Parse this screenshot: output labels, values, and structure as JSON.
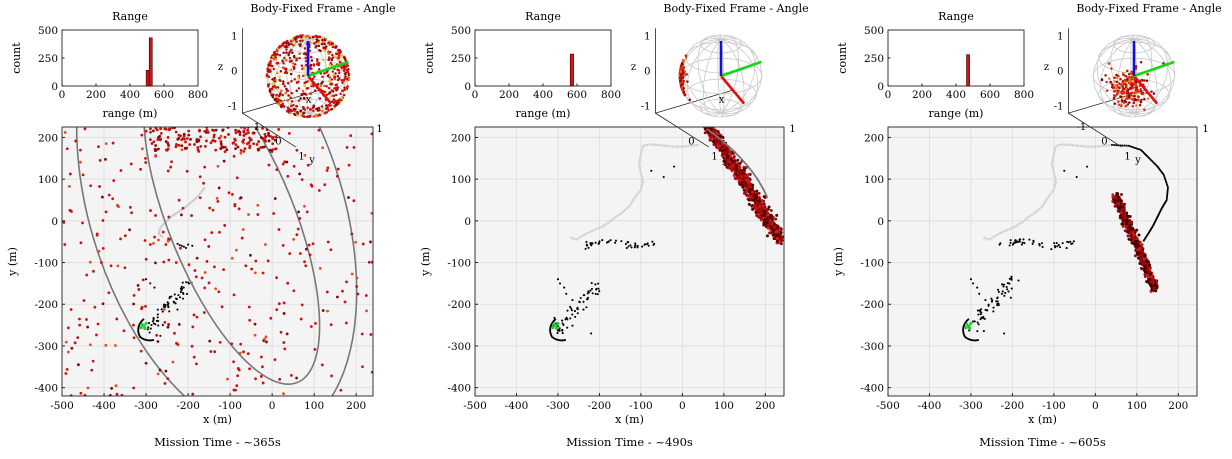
{
  "panels": [
    {
      "caption": "Mission Time - ~365s",
      "sphere_title": "Body-Fixed Frame - Angle",
      "hist": {
        "title": "Range",
        "xlabel": "range (m)",
        "ylabel": "count",
        "xticks": [
          "0",
          "200",
          "400",
          "600",
          "800"
        ],
        "yticks": [
          "0",
          "250",
          "500"
        ],
        "xlim": [
          0,
          800
        ],
        "ylim": [
          0,
          500
        ],
        "bars": [
          {
            "x0": 495,
            "x1": 513,
            "count": 140
          },
          {
            "x0": 513,
            "x1": 531,
            "count": 430
          }
        ]
      },
      "sphere": {
        "x_tick": "1",
        "y_label": "y",
        "y_ticks": [
          "1",
          "0",
          "-1"
        ],
        "z_ticks": [
          "1",
          "0",
          "-1"
        ],
        "z_label": "z",
        "x_label": "x",
        "cluster": "wide",
        "cluster_center": [
          -0.2,
          0.2,
          0.6
        ]
      },
      "map": {
        "xlabel": "x (m)",
        "ylabel": "y (m)",
        "xticks": [
          "-500",
          "-400",
          "-300",
          "-200",
          "-100",
          "0",
          "100",
          "200"
        ],
        "yticks": [
          "200",
          "100",
          "0",
          "-100",
          "-200",
          "-300",
          "-400"
        ],
        "xlim": [
          -500,
          240
        ],
        "ylim": [
          -420,
          225
        ],
        "ring_center": [
          -120,
          -70
        ],
        "ring_rx": [
          355,
          510
        ],
        "ring_ry": [
          340,
          520
        ],
        "mode": "scatter"
      }
    },
    {
      "caption": "Mission Time - ~490s",
      "sphere_title": "Body-Fixed Frame - Angle",
      "hist": {
        "title": "Range",
        "xlabel": "range (m)",
        "ylabel": "count",
        "xticks": [
          "0",
          "200",
          "400",
          "600",
          "800"
        ],
        "yticks": [
          "0",
          "250",
          "500"
        ],
        "xlim": [
          0,
          800
        ],
        "ylim": [
          0,
          500
        ],
        "bars": [
          {
            "x0": 560,
            "x1": 580,
            "count": 285
          }
        ]
      },
      "sphere": {
        "x_tick": "1",
        "y_label": "y",
        "y_ticks": [
          "1",
          "0"
        ],
        "z_ticks": [
          "1",
          "0",
          "-1"
        ],
        "z_label": "z",
        "x_label": "x",
        "cluster": "left",
        "cluster_center": [
          -0.75,
          -0.45,
          0
        ]
      },
      "map": {
        "xlabel": "x (m)",
        "ylabel": "y (m)",
        "xticks": [
          "-500",
          "-400",
          "-300",
          "-200",
          "-100",
          "0",
          "100",
          "200"
        ],
        "yticks": [
          "200",
          "100",
          "0",
          "-100",
          "-200",
          "-300",
          "-400"
        ],
        "xlim": [
          -500,
          245
        ],
        "ylim": [
          -420,
          225
        ],
        "mode": "arc_upper"
      }
    },
    {
      "caption": "Mission Time - ~605s",
      "sphere_title": "Body-Fixed Frame - Angle",
      "hist": {
        "title": "Range",
        "xlabel": "range (m)",
        "ylabel": "count",
        "xticks": [
          "0",
          "200",
          "400",
          "600",
          "800"
        ],
        "yticks": [
          "0",
          "250",
          "500"
        ],
        "xlim": [
          0,
          800
        ],
        "ylim": [
          0,
          500
        ],
        "bars": [
          {
            "x0": 462,
            "x1": 480,
            "count": 280
          }
        ]
      },
      "sphere": {
        "x_tick": "1",
        "y_label": "y",
        "y_ticks": [
          "1",
          "0",
          "-1"
        ],
        "z_ticks": [
          "1",
          "0",
          "-1"
        ],
        "z_label": "z",
        "x_label": "",
        "cluster": "bottom",
        "cluster_center": [
          0.15,
          -0.35,
          -0.35
        ]
      },
      "map": {
        "xlabel": "x (m)",
        "ylabel": "y (m)",
        "xticks": [
          "-500",
          "-400",
          "-300",
          "-200",
          "-100",
          "0",
          "100",
          "200"
        ],
        "yticks": [
          "200",
          "100",
          "0",
          "-100",
          "-200",
          "-300",
          "-400"
        ],
        "xlim": [
          -500,
          245
        ],
        "ylim": [
          -420,
          225
        ],
        "mode": "streak_lower"
      }
    }
  ],
  "colors": {
    "axis_bg": "#f4f4f4",
    "grid": "#dcdcdc",
    "bar": "#d01515",
    "trail": "#cfcfcf",
    "track": "#000000",
    "ring": "#777777",
    "start": "#22cc33",
    "axis_x": "#e01010",
    "axis_y": "#12d812",
    "axis_z": "#1010dd"
  },
  "chart_data": [
    {
      "type": "bar",
      "title": "Range",
      "xlabel": "range (m)",
      "ylabel": "count",
      "xlim": [
        0,
        800
      ],
      "ylim": [
        0,
        500
      ],
      "bins": [
        500,
        520
      ],
      "values": [
        140,
        430
      ],
      "context": "Mission Time - ~365s"
    },
    {
      "type": "scatter",
      "xlabel": "x (m)",
      "ylabel": "y (m)",
      "xlim": [
        -500,
        240
      ],
      "ylim": [
        -420,
        225
      ],
      "series": [
        {
          "values": "uniformly scattered red estimate points within ellipse region"
        }
      ],
      "context": "Mission Time - ~365s"
    },
    {
      "type": "bar",
      "title": "Range",
      "xlabel": "range (m)",
      "ylabel": "count",
      "xlim": [
        0,
        800
      ],
      "ylim": [
        0,
        500
      ],
      "bins": [
        570
      ],
      "values": [
        285
      ],
      "context": "Mission Time - ~490s"
    },
    {
      "type": "bar",
      "title": "Range",
      "xlabel": "range (m)",
      "ylabel": "count",
      "xlim": [
        0,
        800
      ],
      "ylim": [
        0,
        500
      ],
      "bins": [
        470
      ],
      "values": [
        280
      ],
      "context": "Mission Time - ~605s"
    }
  ]
}
